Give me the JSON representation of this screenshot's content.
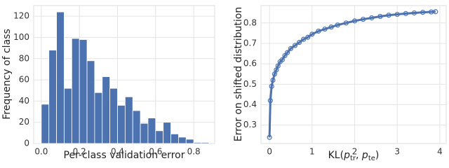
{
  "chart_data": [
    {
      "type": "histogram",
      "xlabel": "Per-class validation error",
      "ylabel": "Frequency of class",
      "color": "#4c72b0",
      "bins": [
        0,
        0.04,
        0.08,
        0.12,
        0.16,
        0.2,
        0.24,
        0.28,
        0.32,
        0.36,
        0.4,
        0.44,
        0.48,
        0.52,
        0.56,
        0.6,
        0.64,
        0.68,
        0.72,
        0.76,
        0.8,
        0.84,
        0.88
      ],
      "values": [
        37,
        88,
        124,
        52,
        99,
        98,
        78,
        48,
        63,
        52,
        36,
        44,
        31,
        19,
        24,
        12,
        20,
        9,
        6,
        4,
        1,
        1
      ],
      "xlim": [
        -0.04,
        0.91
      ],
      "xticks": [
        {
          "value": 0,
          "label": "0.0"
        },
        0.2,
        0.4,
        0.6,
        0.8
      ],
      "ylim": [
        0,
        130
      ],
      "yticks": [
        0,
        20,
        40,
        60,
        80,
        100,
        120
      ],
      "grid": true
    },
    {
      "type": "line",
      "ylabel": "Error on shifted distribution",
      "xlabel_parts": [
        "KL(",
        "p",
        "tr",
        ", ",
        "p",
        "te",
        ")"
      ],
      "color": "#4c72b0",
      "x": [
        0,
        0.02,
        0.05,
        0.08,
        0.12,
        0.16,
        0.2,
        0.25,
        0.3,
        0.36,
        0.42,
        0.5,
        0.6,
        0.7,
        0.8,
        0.9,
        1.0,
        1.15,
        1.3,
        1.45,
        1.6,
        1.8,
        2.0,
        2.2,
        2.4,
        2.6,
        2.8,
        3.0,
        3.2,
        3.4,
        3.6,
        3.8,
        3.9
      ],
      "values": [
        0.24,
        0.42,
        0.49,
        0.52,
        0.55,
        0.57,
        0.59,
        0.61,
        0.62,
        0.64,
        0.655,
        0.675,
        0.69,
        0.705,
        0.72,
        0.73,
        0.745,
        0.76,
        0.77,
        0.78,
        0.79,
        0.8,
        0.81,
        0.818,
        0.825,
        0.832,
        0.838,
        0.842,
        0.846,
        0.849,
        0.852,
        0.854,
        0.855
      ],
      "xlim": [
        -0.2,
        4.15
      ],
      "xticks": [
        0,
        1,
        2,
        3,
        4
      ],
      "ylim": [
        0.21,
        0.885
      ],
      "yticks": [
        0.3,
        0.4,
        0.5,
        0.6,
        0.7,
        0.8
      ],
      "grid": true
    }
  ]
}
